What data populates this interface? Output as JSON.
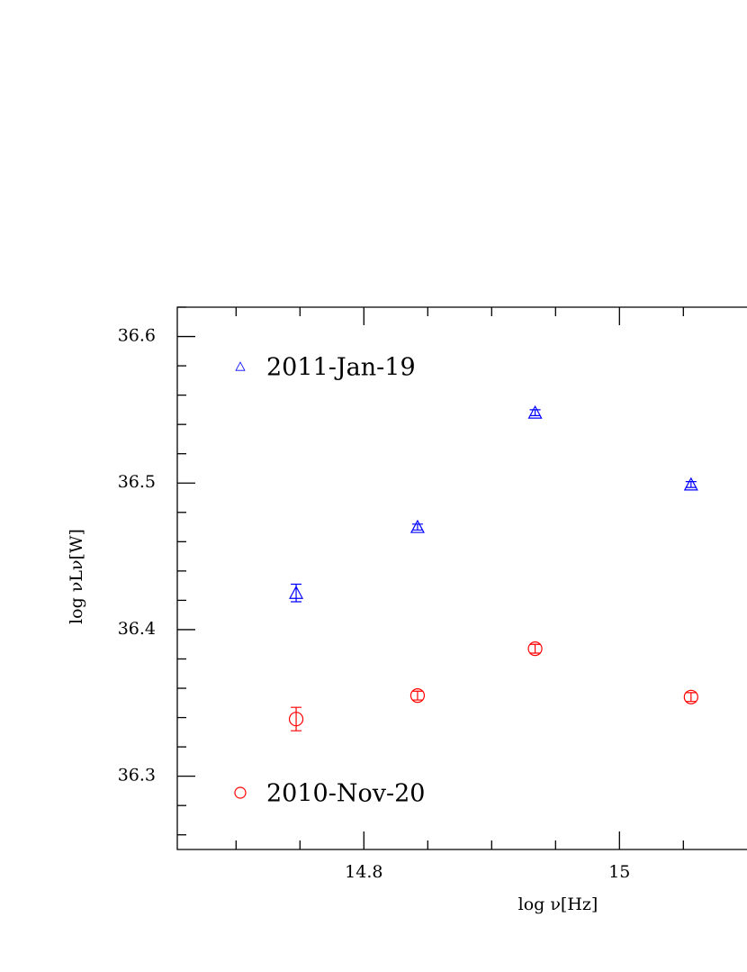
{
  "chart_data": {
    "type": "scatter",
    "x_label": "log ν[Hz]",
    "y_label": "log νLν[W]",
    "xlim": [
      14.654,
      15.1
    ],
    "ylim": [
      36.25,
      36.62
    ],
    "xticks": [
      14.8,
      15
    ],
    "xminor_ticks": [
      14.7,
      14.75,
      14.85,
      14.9,
      14.95,
      15.05
    ],
    "yticks": [
      36.3,
      36.4,
      36.5,
      36.6
    ],
    "yminor_ticks": [
      36.26,
      36.28,
      36.32,
      36.34,
      36.36,
      36.38,
      36.42,
      36.44,
      36.46,
      36.48,
      36.52,
      36.54,
      36.56,
      36.58,
      36.62
    ],
    "series": [
      {
        "name": "2011-Jan-19",
        "color": "#0000ff",
        "marker": "triangle",
        "x": [
          14.747,
          14.842,
          14.934,
          15.056
        ],
        "values": [
          36.425,
          36.47,
          36.548,
          36.499
        ],
        "errors": [
          0.006,
          0.002,
          0.002,
          0.002
        ]
      },
      {
        "name": "2010-Nov-20",
        "color": "#ff0000",
        "marker": "circle",
        "x": [
          14.747,
          14.842,
          14.934,
          15.056
        ],
        "values": [
          36.339,
          36.355,
          36.387,
          36.354
        ],
        "errors": [
          0.008,
          0.003,
          0.003,
          0.003
        ]
      }
    ]
  }
}
